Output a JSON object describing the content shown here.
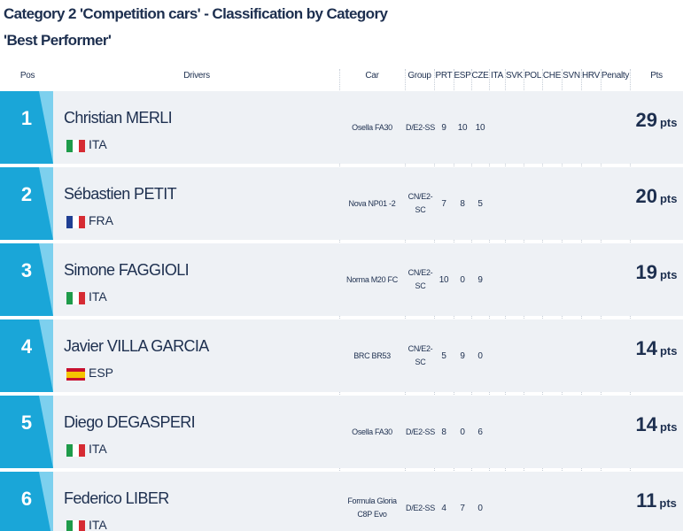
{
  "title": [
    "Category 2 'Competition cars' - Classification by Category",
    "'Best Performer'"
  ],
  "table": {
    "headers": [
      "Pos",
      "Drivers",
      "Car",
      "Group",
      "PRT",
      "ESP",
      "CZE",
      "ITA",
      "SVK",
      "POL",
      "CHE",
      "SVN",
      "HRV",
      "Penalty",
      "Pts"
    ],
    "rows": [
      {
        "pos": 1,
        "driver": "Christian MERLI",
        "country": "ITA",
        "car": "Osella FA30",
        "group": "D/E2-SS",
        "scores": [
          9,
          10,
          10,
          null,
          null,
          null,
          null,
          null,
          null
        ],
        "points": 29,
        "points_unit": "pts"
      },
      {
        "pos": 2,
        "driver": "Sébastien PETIT",
        "country": "FRA",
        "car": "Nova NP01 -2",
        "group": "CN/E2-SC",
        "scores": [
          7,
          8,
          5,
          null,
          null,
          null,
          null,
          null,
          null
        ],
        "points": 20,
        "points_unit": "pts"
      },
      {
        "pos": 3,
        "driver": "Simone FAGGIOLI",
        "country": "ITA",
        "car": "Norma M20 FC",
        "group": "CN/E2-SC",
        "scores": [
          10,
          0,
          9,
          null,
          null,
          null,
          null,
          null,
          null
        ],
        "points": 19,
        "points_unit": "pts"
      },
      {
        "pos": 4,
        "driver": "Javier VILLA GARCIA",
        "country": "ESP",
        "car": "BRC BR53",
        "group": "CN/E2-SC",
        "scores": [
          5,
          9,
          0,
          null,
          null,
          null,
          null,
          null,
          null
        ],
        "points": 14,
        "points_unit": "pts"
      },
      {
        "pos": 5,
        "driver": "Diego DEGASPERI",
        "country": "ITA",
        "car": "Osella FA30",
        "group": "D/E2-SS",
        "scores": [
          8,
          0,
          6,
          null,
          null,
          null,
          null,
          null,
          null
        ],
        "points": 14,
        "points_unit": "pts"
      },
      {
        "pos": 6,
        "driver": "Federico LIBER",
        "country": "ITA",
        "car": "Formula Gloria C8P Evo",
        "group": "D/E2-SS",
        "scores": [
          4,
          7,
          0,
          null,
          null,
          null,
          null,
          null,
          null
        ],
        "points": 11,
        "points_unit": "pts"
      }
    ]
  }
}
